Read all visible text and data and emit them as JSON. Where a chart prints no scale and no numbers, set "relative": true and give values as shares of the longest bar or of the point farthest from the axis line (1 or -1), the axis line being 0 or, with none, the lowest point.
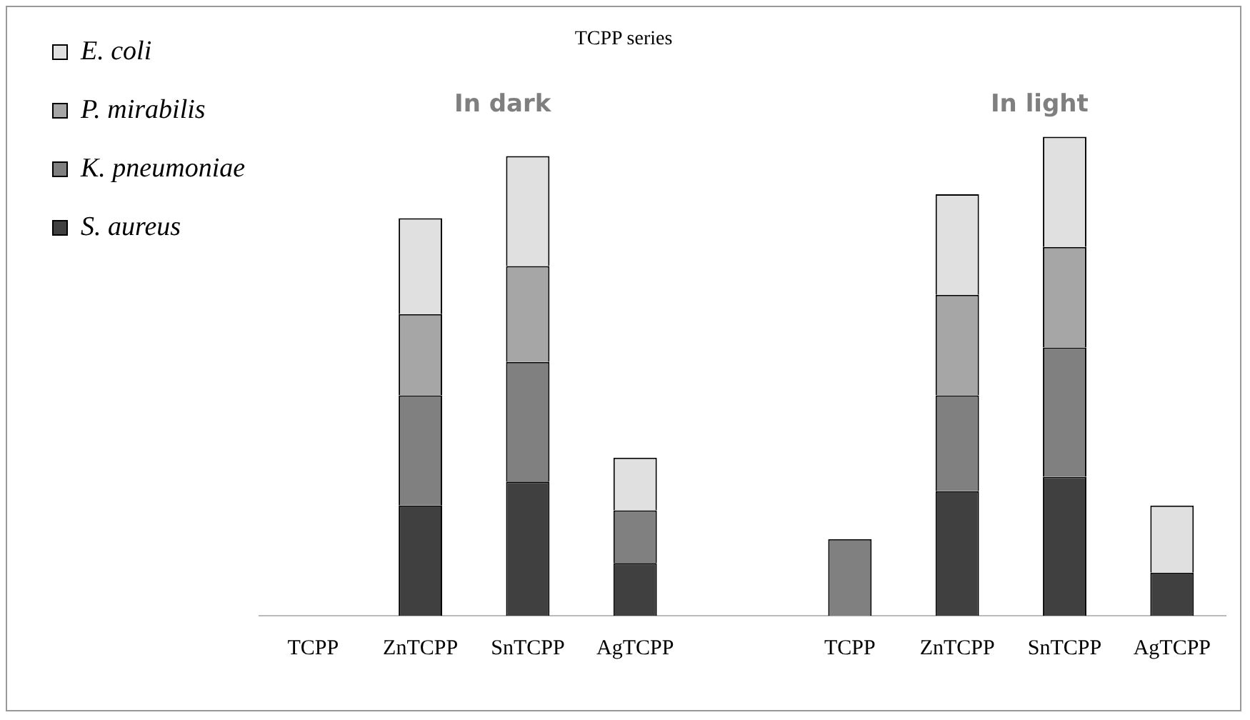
{
  "chart_data": {
    "type": "bar",
    "title": "TCPP series",
    "stacked": true,
    "relative": true,
    "legend": "top left",
    "grid": false,
    "categories": [
      "TCPP",
      "ZnTCPP",
      "SnTCPP",
      "AgTCPP",
      null,
      "TCPP",
      "ZnTCPP",
      "SnTCPP",
      "AgTCPP"
    ],
    "annotations": [
      "In dark",
      "In light"
    ],
    "series": [
      {
        "name": "S. aureus",
        "color": "#404040",
        "values": [
          null,
          0.23,
          0.28,
          0.11,
          null,
          null,
          0.26,
          0.29,
          0.09
        ]
      },
      {
        "name": "K. pneumoniae",
        "color": "#808080",
        "values": [
          null,
          0.23,
          0.25,
          0.11,
          null,
          0.16,
          0.2,
          0.27,
          null
        ]
      },
      {
        "name": "P. mirabilis",
        "color": "#a6a6a6",
        "values": [
          null,
          0.17,
          0.2,
          null,
          null,
          null,
          0.21,
          0.21,
          null
        ]
      },
      {
        "name": "E. coli",
        "color": "#e0e0e0",
        "values": [
          null,
          0.2,
          0.23,
          0.11,
          null,
          null,
          0.21,
          0.23,
          0.14
        ]
      }
    ]
  }
}
